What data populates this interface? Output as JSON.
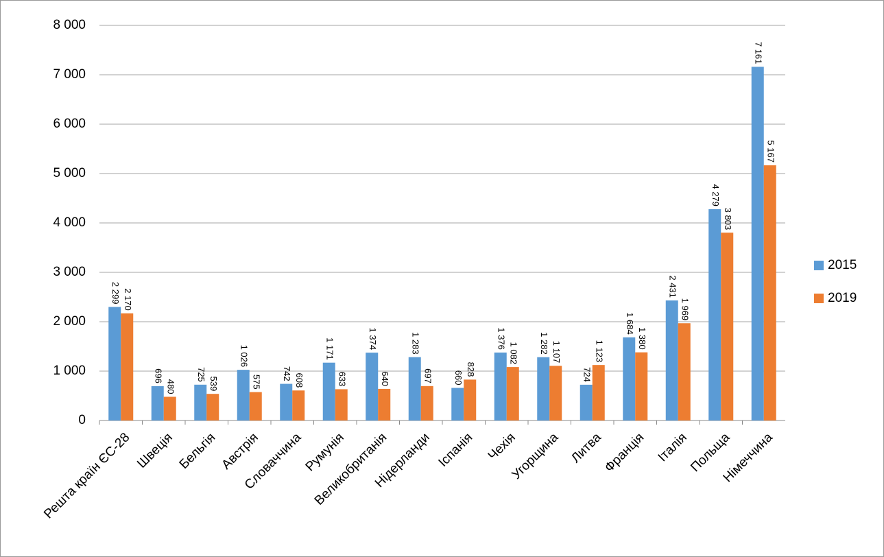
{
  "chart_data": {
    "type": "bar",
    "categories": [
      "Решта країн ЄС-28",
      "Швеція",
      "Бельгія",
      "Австрія",
      "Словаччина",
      "Румунія",
      "Великобританія",
      "Нідерланди",
      "Іспанія",
      "Чехія",
      "Угорщина",
      "Литва",
      "Франція",
      "Італія",
      "Польща",
      "Німеччина"
    ],
    "series": [
      {
        "name": "2015",
        "color": "#5b9bd5",
        "values": [
          2299,
          696,
          725,
          1026,
          742,
          1171,
          1374,
          1283,
          660,
          1376,
          1282,
          724,
          1684,
          2431,
          4279,
          7161
        ],
        "value_labels": [
          "2 299",
          "696",
          "725",
          "1 026",
          "742",
          "1 171",
          "1 374",
          "1 283",
          "660",
          "1 376",
          "1 282",
          "724",
          "1 684",
          "2 431",
          "4 279",
          "7 161"
        ]
      },
      {
        "name": "2019",
        "color": "#ed7d31",
        "values": [
          2170,
          480,
          539,
          575,
          608,
          633,
          640,
          697,
          828,
          1082,
          1107,
          1123,
          1380,
          1969,
          3803,
          5167
        ],
        "value_labels": [
          "2 170",
          "480",
          "539",
          "575",
          "608",
          "633",
          "640",
          "697",
          "828",
          "1 082",
          "1 107",
          "1 123",
          "1 380",
          "1 969",
          "3 803",
          "5 167"
        ]
      }
    ],
    "ylim": [
      0,
      8000
    ],
    "yticks": [
      {
        "value": 0,
        "label": "0"
      },
      {
        "value": 1000,
        "label": "1 000"
      },
      {
        "value": 2000,
        "label": "2 000"
      },
      {
        "value": 3000,
        "label": "3 000"
      },
      {
        "value": 4000,
        "label": "4 000"
      },
      {
        "value": 5000,
        "label": "5 000"
      },
      {
        "value": 6000,
        "label": "6 000"
      },
      {
        "value": 7000,
        "label": "7 000"
      },
      {
        "value": 8000,
        "label": "8 000"
      }
    ],
    "grid": true,
    "legend": "right"
  }
}
